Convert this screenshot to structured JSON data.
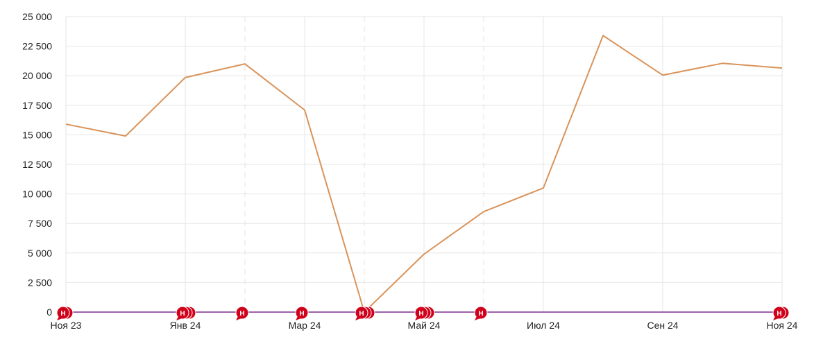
{
  "chart_data": {
    "type": "line",
    "title": "",
    "xlabel": "",
    "ylabel": "",
    "ylim": [
      0,
      25000
    ],
    "grid": true,
    "y_ticks": [
      0,
      2500,
      5000,
      7500,
      10000,
      12500,
      15000,
      17500,
      20000,
      22500,
      25000
    ],
    "y_tick_labels": [
      "0",
      "2 500",
      "5 000",
      "7 500",
      "10 000",
      "12 500",
      "15 000",
      "17 500",
      "20 000",
      "22 500",
      "25 000"
    ],
    "x": [
      "2023-11",
      "2023-12",
      "2024-01",
      "2024-02",
      "2024-03",
      "2024-04",
      "2024-05",
      "2024-06",
      "2024-07",
      "2024-08",
      "2024-09",
      "2024-10",
      "2024-11"
    ],
    "x_tick_labels": [
      {
        "x": "2023-11",
        "label": "Ноя 23"
      },
      {
        "x": "2024-01",
        "label": "Янв 24"
      },
      {
        "x": "2024-03",
        "label": "Мар 24"
      },
      {
        "x": "2024-05",
        "label": "Май 24"
      },
      {
        "x": "2024-07",
        "label": "Июл 24"
      },
      {
        "x": "2024-09",
        "label": "Сен 24"
      },
      {
        "x": "2024-11",
        "label": "Ноя 24"
      }
    ],
    "series": [
      {
        "color": "#d9935a",
        "values": [
          15900,
          14900,
          19850,
          21000,
          17100,
          0,
          4900,
          8500,
          10500,
          23400,
          20050,
          21050,
          20650
        ]
      },
      {
        "color": "#9b5fa8",
        "values": [
          0,
          0,
          0,
          0,
          0,
          0,
          0,
          0,
          0,
          0,
          0,
          0,
          0
        ]
      }
    ],
    "dashed_gridlines": [
      "2024-02",
      "2024-04",
      "2024-06"
    ],
    "annotations": {
      "label": "Н",
      "color": "#d0021b",
      "markers": [
        {
          "x": "2023-11",
          "count": 2
        },
        {
          "x": "2024-01",
          "count": 3
        },
        {
          "x": "2024-02",
          "count": 1
        },
        {
          "x": "2024-03",
          "count": 1
        },
        {
          "x": "2024-04",
          "count": 3
        },
        {
          "x": "2024-05",
          "count": 3
        },
        {
          "x": "2024-06",
          "count": 1
        },
        {
          "x": "2024-11",
          "count": 2
        }
      ]
    }
  }
}
